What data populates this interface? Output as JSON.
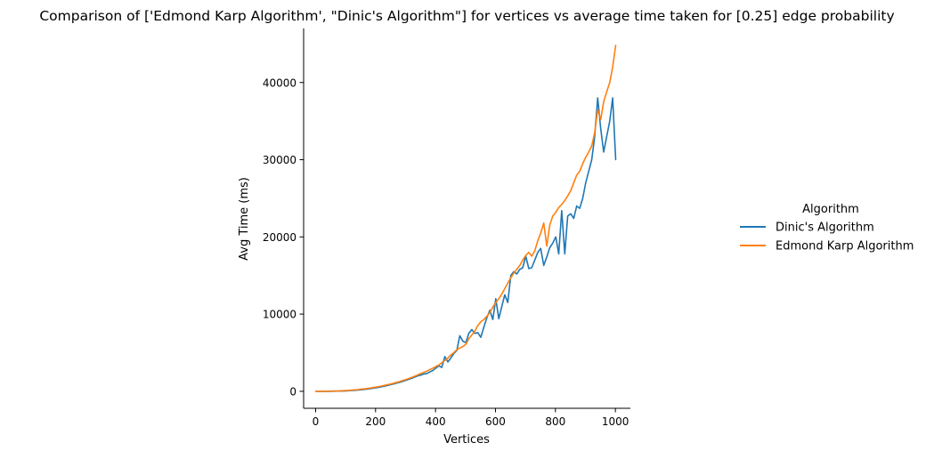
{
  "chart_data": {
    "type": "line",
    "title": "Comparison of ['Edmond Karp Algorithm', \"Dinic's Algorithm\"] for vertices vs average time taken for [0.25] edge probability",
    "xlabel": "Vertices",
    "ylabel": "Avg Time (ms)",
    "xlim": [
      -40,
      1050
    ],
    "ylim": [
      -2200,
      47000
    ],
    "xticks": [
      0,
      200,
      400,
      600,
      800,
      1000
    ],
    "yticks": [
      0,
      10000,
      20000,
      30000,
      40000
    ],
    "grid": false,
    "legend": {
      "title": "Algorithm",
      "position": "right"
    },
    "x": [
      1,
      11,
      21,
      31,
      41,
      51,
      61,
      71,
      81,
      91,
      101,
      111,
      121,
      131,
      141,
      151,
      161,
      171,
      181,
      191,
      201,
      211,
      221,
      231,
      241,
      251,
      261,
      271,
      281,
      291,
      301,
      311,
      321,
      331,
      341,
      351,
      361,
      371,
      381,
      391,
      401,
      411,
      421,
      431,
      441,
      451,
      461,
      471,
      481,
      491,
      501,
      511,
      521,
      531,
      541,
      551,
      561,
      571,
      581,
      591,
      601,
      611,
      621,
      631,
      641,
      651,
      661,
      671,
      681,
      691,
      701,
      711,
      721,
      731,
      741,
      751,
      761,
      771,
      781,
      791,
      801,
      811,
      821,
      831,
      841,
      851,
      861,
      871,
      881,
      891,
      901,
      911,
      921,
      931,
      941,
      951,
      961,
      971,
      981,
      991,
      1001
    ],
    "series": [
      {
        "name": "Dinic's Algorithm",
        "color": "#1f77b4",
        "values": [
          0,
          0,
          0,
          0,
          0,
          0,
          10,
          20,
          30,
          40,
          60,
          80,
          100,
          130,
          160,
          200,
          240,
          280,
          340,
          390,
          450,
          520,
          600,
          680,
          770,
          860,
          960,
          1070,
          1180,
          1300,
          1420,
          1560,
          1700,
          1850,
          2000,
          2100,
          2250,
          2300,
          2500,
          2700,
          3000,
          3300,
          3100,
          4500,
          3800,
          4300,
          4900,
          5300,
          7200,
          6500,
          6300,
          7500,
          8000,
          7500,
          7600,
          7000,
          8300,
          9500,
          10500,
          9300,
          12000,
          9400,
          11000,
          12500,
          11500,
          15000,
          15500,
          15200,
          15800,
          16000,
          17500,
          15900,
          16000,
          17000,
          18000,
          18500,
          16300,
          17400,
          18600,
          19200,
          20000,
          17800,
          23400,
          17800,
          22700,
          23000,
          22400,
          24000,
          23700,
          25000,
          27000,
          28500,
          30000,
          33000,
          38000,
          34000,
          31000,
          33000,
          35000,
          38000,
          30000
        ]
      },
      {
        "name": "Edmond Karp Algorithm",
        "color": "#ff7f0e",
        "values": [
          0,
          0,
          0,
          0,
          10,
          20,
          30,
          40,
          60,
          80,
          100,
          120,
          150,
          180,
          220,
          260,
          310,
          360,
          420,
          480,
          540,
          610,
          690,
          770,
          860,
          950,
          1050,
          1160,
          1270,
          1390,
          1520,
          1660,
          1800,
          1960,
          2120,
          2300,
          2450,
          2600,
          2800,
          3000,
          3200,
          3400,
          3700,
          4000,
          4300,
          4700,
          5000,
          5400,
          5600,
          5800,
          6100,
          6800,
          7300,
          7800,
          8500,
          9000,
          9300,
          9700,
          10200,
          10900,
          11500,
          12000,
          12600,
          13300,
          14000,
          14700,
          15300,
          15800,
          16300,
          17000,
          17600,
          18000,
          17500,
          18200,
          19500,
          20500,
          21800,
          18800,
          21500,
          22700,
          23200,
          23800,
          24200,
          24700,
          25300,
          26000,
          27000,
          28000,
          28500,
          29500,
          30300,
          31000,
          31800,
          33500,
          36500,
          35200,
          37500,
          38800,
          40000,
          42000,
          44800
        ]
      }
    ]
  }
}
